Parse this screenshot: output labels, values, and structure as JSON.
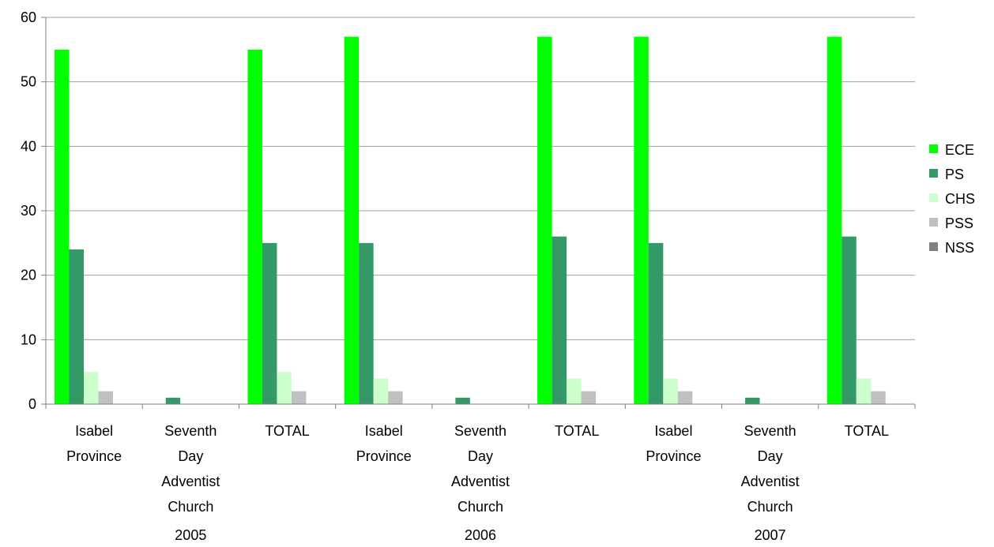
{
  "chart_data": {
    "type": "bar",
    "title": "",
    "xlabel": "",
    "ylabel": "",
    "ylim": [
      0,
      60
    ],
    "yticks": [
      0,
      10,
      20,
      30,
      40,
      50,
      60
    ],
    "grid": true,
    "legend_position": "right",
    "groups": [
      {
        "label": "2005",
        "categories": [
          "Isabel Province",
          "Seventh Day Adventist Church",
          "TOTAL"
        ]
      },
      {
        "label": "2006",
        "categories": [
          "Isabel Province",
          "Seventh Day Adventist Church",
          "TOTAL"
        ]
      },
      {
        "label": "2007",
        "categories": [
          "Isabel Province",
          "Seventh Day Adventist Church",
          "TOTAL"
        ]
      }
    ],
    "category_label_lines": [
      [
        "Isabel",
        "Province"
      ],
      [
        "Seventh",
        "Day",
        "Adventist",
        "Church"
      ],
      [
        "TOTAL"
      ]
    ],
    "series": [
      {
        "name": "ECE",
        "color": "#00ff00",
        "values": [
          55,
          0,
          55,
          57,
          0,
          57,
          57,
          0,
          57
        ]
      },
      {
        "name": "PS",
        "color": "#339966",
        "values": [
          24,
          1,
          25,
          25,
          1,
          26,
          25,
          1,
          26
        ]
      },
      {
        "name": "CHS",
        "color": "#ccffcc",
        "values": [
          5,
          0,
          5,
          4,
          0,
          4,
          4,
          0,
          4
        ]
      },
      {
        "name": "PSS",
        "color": "#c0c0c0",
        "values": [
          2,
          0,
          2,
          2,
          0,
          2,
          2,
          0,
          2
        ]
      },
      {
        "name": "NSS",
        "color": "#808080",
        "values": [
          0,
          0,
          0,
          0,
          0,
          0,
          0,
          0,
          0
        ]
      }
    ]
  }
}
